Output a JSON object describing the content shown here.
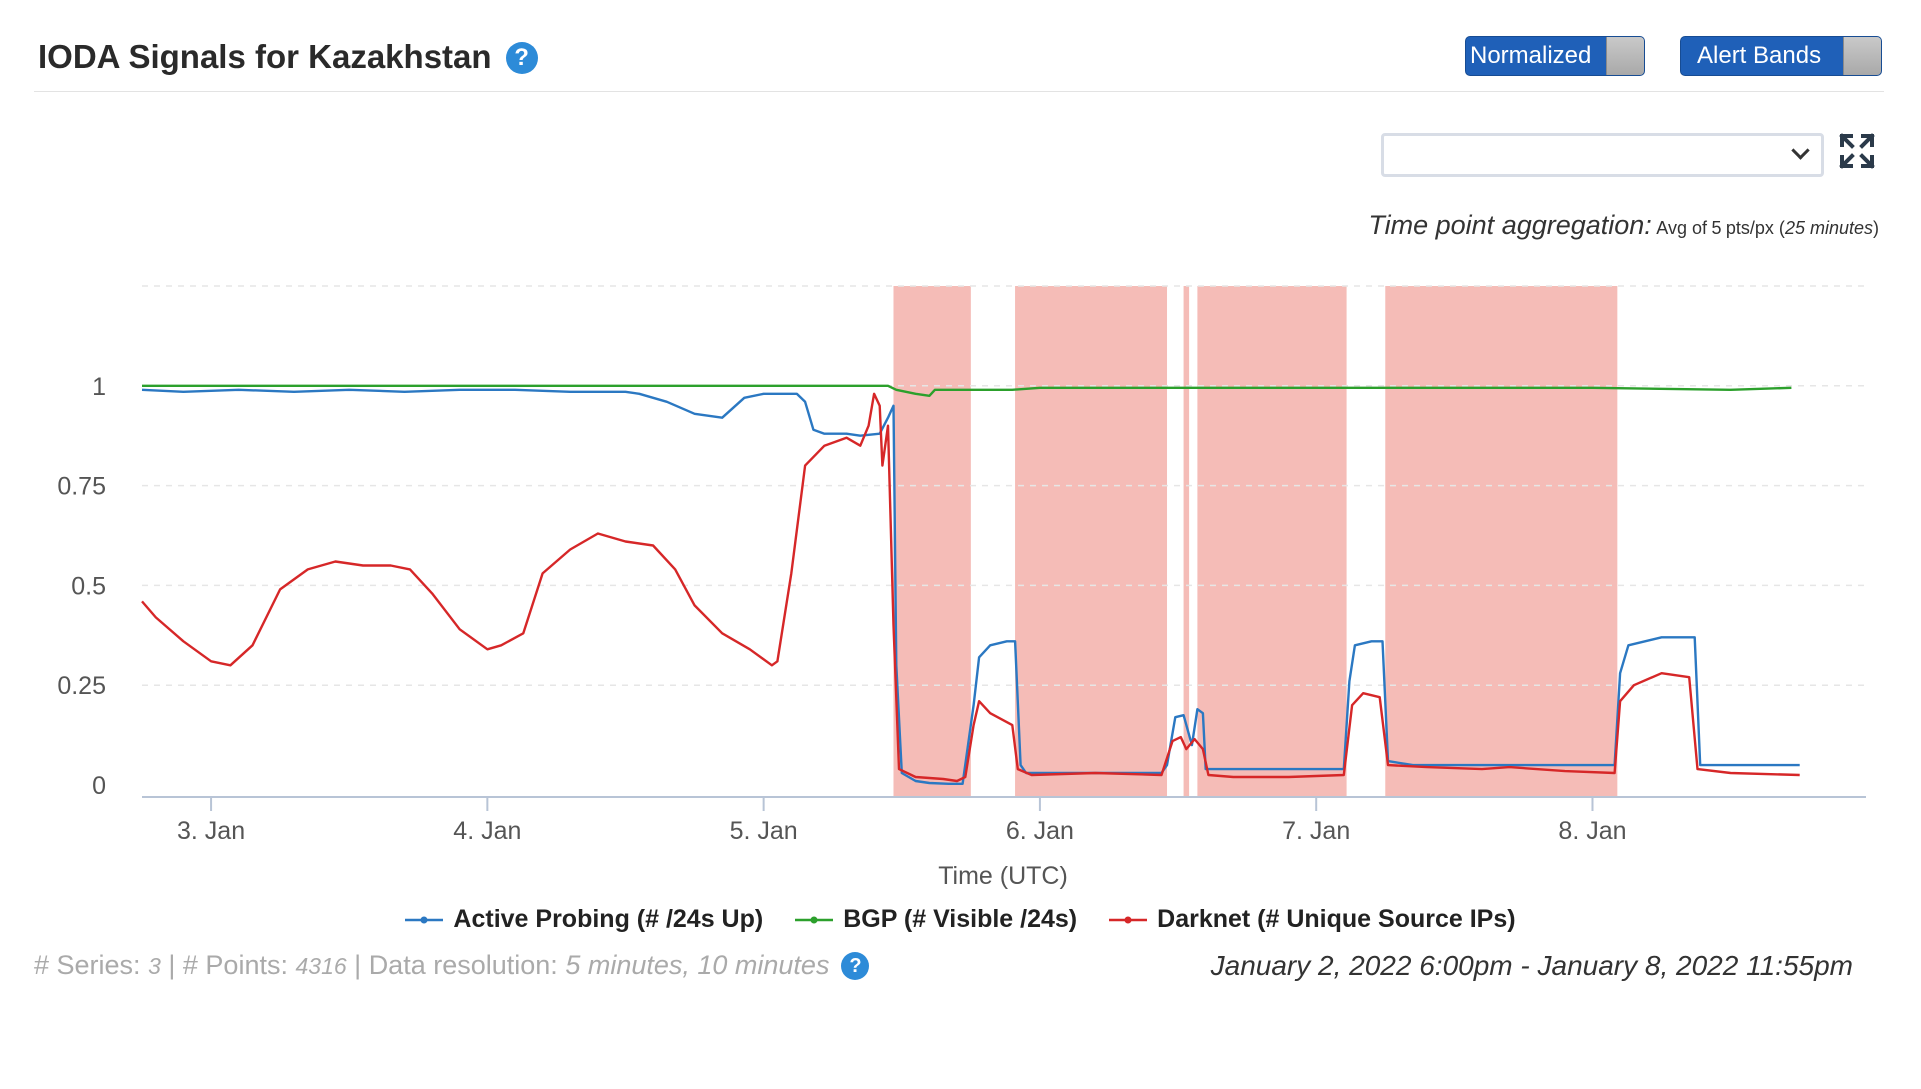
{
  "header": {
    "title": "IODA Signals for Kazakhstan",
    "help_glyph": "?",
    "toggle_normalized": "Normalized",
    "toggle_alert_bands": "Alert Bands"
  },
  "toolbar": {
    "select_value": "",
    "expand_icon": "expand-icon"
  },
  "aggregation": {
    "label": "Time point aggregation:",
    "prefix": "Avg of",
    "points": "5",
    "unit": "pts/px (",
    "window": "25 minutes",
    "suffix": ")"
  },
  "chart_data": {
    "type": "line",
    "xlabel": "Time (UTC)",
    "ylabel": "",
    "x_unit": "days (January 2022, UTC)",
    "x_range": [
      2.75,
      8.99
    ],
    "ylim": [
      -0.03,
      1.25
    ],
    "x_ticks": [
      {
        "x": 3,
        "label": "3. Jan"
      },
      {
        "x": 4,
        "label": "4. Jan"
      },
      {
        "x": 5,
        "label": "5. Jan"
      },
      {
        "x": 6,
        "label": "6. Jan"
      },
      {
        "x": 7,
        "label": "7. Jan"
      },
      {
        "x": 8,
        "label": "8. Jan"
      }
    ],
    "y_ticks": [
      {
        "y": 0,
        "label": "0"
      },
      {
        "y": 0.25,
        "label": "0.25"
      },
      {
        "y": 0.5,
        "label": "0.5"
      },
      {
        "y": 0.75,
        "label": "0.75"
      },
      {
        "y": 1,
        "label": "1"
      }
    ],
    "grid": true,
    "legend_position": "bottom",
    "alert_bands": [
      [
        5.47,
        5.75
      ],
      [
        5.91,
        6.46
      ],
      [
        6.52,
        6.54
      ],
      [
        6.57,
        7.11
      ],
      [
        7.25,
        8.09
      ]
    ],
    "alert_band_color": "#f5bcb7",
    "series": [
      {
        "name": "Active Probing (# /24s Up)",
        "color": "#2b78c2",
        "points": [
          [
            2.75,
            0.99
          ],
          [
            2.9,
            0.985
          ],
          [
            3.1,
            0.99
          ],
          [
            3.3,
            0.985
          ],
          [
            3.5,
            0.99
          ],
          [
            3.7,
            0.985
          ],
          [
            3.9,
            0.99
          ],
          [
            4.1,
            0.99
          ],
          [
            4.3,
            0.985
          ],
          [
            4.5,
            0.985
          ],
          [
            4.55,
            0.98
          ],
          [
            4.65,
            0.96
          ],
          [
            4.75,
            0.93
          ],
          [
            4.85,
            0.92
          ],
          [
            4.93,
            0.97
          ],
          [
            5.0,
            0.98
          ],
          [
            5.08,
            0.98
          ],
          [
            5.12,
            0.98
          ],
          [
            5.15,
            0.96
          ],
          [
            5.18,
            0.89
          ],
          [
            5.22,
            0.88
          ],
          [
            5.3,
            0.88
          ],
          [
            5.35,
            0.875
          ],
          [
            5.42,
            0.88
          ],
          [
            5.45,
            0.92
          ],
          [
            5.47,
            0.95
          ],
          [
            5.48,
            0.3
          ],
          [
            5.5,
            0.03
          ],
          [
            5.55,
            0.01
          ],
          [
            5.6,
            0.005
          ],
          [
            5.67,
            0.003
          ],
          [
            5.72,
            0.003
          ],
          [
            5.76,
            0.2
          ],
          [
            5.78,
            0.32
          ],
          [
            5.82,
            0.35
          ],
          [
            5.88,
            0.36
          ],
          [
            5.91,
            0.36
          ],
          [
            5.93,
            0.05
          ],
          [
            5.95,
            0.03
          ],
          [
            6.1,
            0.03
          ],
          [
            6.3,
            0.03
          ],
          [
            6.44,
            0.03
          ],
          [
            6.46,
            0.05
          ],
          [
            6.49,
            0.17
          ],
          [
            6.52,
            0.175
          ],
          [
            6.55,
            0.1
          ],
          [
            6.57,
            0.19
          ],
          [
            6.59,
            0.18
          ],
          [
            6.6,
            0.04
          ],
          [
            6.65,
            0.04
          ],
          [
            6.8,
            0.04
          ],
          [
            6.9,
            0.04
          ],
          [
            7.1,
            0.04
          ],
          [
            7.12,
            0.26
          ],
          [
            7.14,
            0.35
          ],
          [
            7.2,
            0.36
          ],
          [
            7.24,
            0.36
          ],
          [
            7.26,
            0.06
          ],
          [
            7.35,
            0.05
          ],
          [
            7.5,
            0.05
          ],
          [
            7.7,
            0.05
          ],
          [
            7.9,
            0.05
          ],
          [
            8.08,
            0.05
          ],
          [
            8.1,
            0.28
          ],
          [
            8.13,
            0.35
          ],
          [
            8.25,
            0.37
          ],
          [
            8.37,
            0.37
          ],
          [
            8.39,
            0.05
          ],
          [
            8.45,
            0.05
          ],
          [
            8.7,
            0.05
          ],
          [
            8.75,
            0.05
          ]
        ]
      },
      {
        "name": "BGP (# Visible /24s)",
        "color": "#2ca02c",
        "points": [
          [
            2.75,
            1.0
          ],
          [
            3.5,
            1.0
          ],
          [
            4.5,
            1.0
          ],
          [
            5.2,
            1.0
          ],
          [
            5.45,
            1.0
          ],
          [
            5.48,
            0.99
          ],
          [
            5.55,
            0.98
          ],
          [
            5.6,
            0.975
          ],
          [
            5.62,
            0.99
          ],
          [
            5.75,
            0.99
          ],
          [
            5.9,
            0.99
          ],
          [
            6.0,
            0.995
          ],
          [
            6.1,
            0.995
          ],
          [
            7.0,
            0.995
          ],
          [
            8.0,
            0.995
          ],
          [
            8.5,
            0.99
          ],
          [
            8.72,
            0.995
          ]
        ]
      },
      {
        "name": "Darknet (# Unique Source IPs)",
        "color": "#d62728",
        "points": [
          [
            2.75,
            0.46
          ],
          [
            2.8,
            0.42
          ],
          [
            2.9,
            0.36
          ],
          [
            3.0,
            0.31
          ],
          [
            3.07,
            0.3
          ],
          [
            3.15,
            0.35
          ],
          [
            3.25,
            0.49
          ],
          [
            3.35,
            0.54
          ],
          [
            3.45,
            0.56
          ],
          [
            3.55,
            0.55
          ],
          [
            3.65,
            0.55
          ],
          [
            3.72,
            0.54
          ],
          [
            3.8,
            0.48
          ],
          [
            3.9,
            0.39
          ],
          [
            4.0,
            0.34
          ],
          [
            4.05,
            0.35
          ],
          [
            4.13,
            0.38
          ],
          [
            4.2,
            0.53
          ],
          [
            4.3,
            0.59
          ],
          [
            4.4,
            0.63
          ],
          [
            4.5,
            0.61
          ],
          [
            4.6,
            0.6
          ],
          [
            4.68,
            0.54
          ],
          [
            4.75,
            0.45
          ],
          [
            4.85,
            0.38
          ],
          [
            4.95,
            0.34
          ],
          [
            5.03,
            0.3
          ],
          [
            5.05,
            0.31
          ],
          [
            5.1,
            0.53
          ],
          [
            5.15,
            0.8
          ],
          [
            5.22,
            0.85
          ],
          [
            5.3,
            0.87
          ],
          [
            5.35,
            0.85
          ],
          [
            5.38,
            0.9
          ],
          [
            5.4,
            0.98
          ],
          [
            5.42,
            0.95
          ],
          [
            5.43,
            0.8
          ],
          [
            5.45,
            0.9
          ],
          [
            5.47,
            0.4
          ],
          [
            5.49,
            0.04
          ],
          [
            5.55,
            0.02
          ],
          [
            5.65,
            0.015
          ],
          [
            5.7,
            0.01
          ],
          [
            5.73,
            0.02
          ],
          [
            5.76,
            0.15
          ],
          [
            5.78,
            0.21
          ],
          [
            5.82,
            0.18
          ],
          [
            5.9,
            0.15
          ],
          [
            5.92,
            0.04
          ],
          [
            5.97,
            0.025
          ],
          [
            6.2,
            0.03
          ],
          [
            6.44,
            0.025
          ],
          [
            6.48,
            0.11
          ],
          [
            6.51,
            0.12
          ],
          [
            6.53,
            0.09
          ],
          [
            6.56,
            0.115
          ],
          [
            6.59,
            0.09
          ],
          [
            6.61,
            0.025
          ],
          [
            6.7,
            0.02
          ],
          [
            6.9,
            0.02
          ],
          [
            7.1,
            0.025
          ],
          [
            7.13,
            0.2
          ],
          [
            7.17,
            0.23
          ],
          [
            7.23,
            0.22
          ],
          [
            7.26,
            0.05
          ],
          [
            7.4,
            0.045
          ],
          [
            7.6,
            0.04
          ],
          [
            7.7,
            0.045
          ],
          [
            7.9,
            0.035
          ],
          [
            8.08,
            0.03
          ],
          [
            8.1,
            0.21
          ],
          [
            8.15,
            0.25
          ],
          [
            8.25,
            0.28
          ],
          [
            8.35,
            0.27
          ],
          [
            8.38,
            0.04
          ],
          [
            8.5,
            0.03
          ],
          [
            8.75,
            0.025
          ]
        ]
      }
    ]
  },
  "stats": {
    "series_label": "# Series:",
    "series_count": "3",
    "points_label": "# Points:",
    "points_count": "4316",
    "resolution_label": "Data resolution:",
    "resolution_value": "5 minutes, 10 minutes"
  },
  "date_range": "January 2, 2022 6:00pm - January 8, 2022 11:55pm"
}
